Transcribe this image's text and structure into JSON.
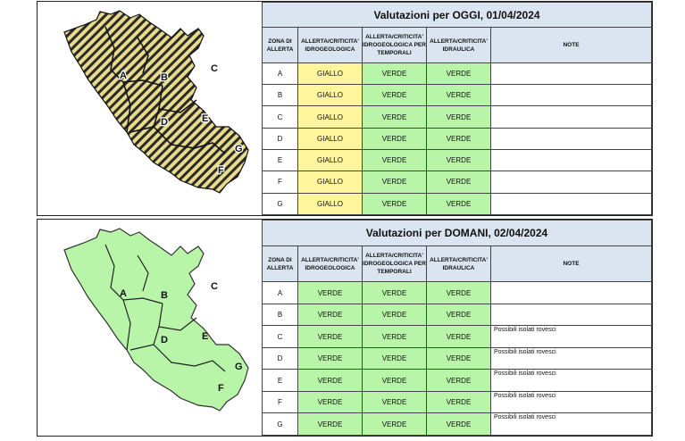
{
  "headers": [
    "ZONA DI ALLERTA",
    "ALLERTA/CRITICITA' IDROGEOLOGICA",
    "ALLERTA/CRITICITA' IDROGEOLOGICA PER TEMPORALI",
    "ALLERTA/CRITICITA' IDRAULICA",
    "NOTE"
  ],
  "today": {
    "title": "Valutazioni per OGGI, 01/04/2024",
    "map_zone_labels": [
      "A",
      "B",
      "C",
      "D",
      "E",
      "F",
      "G"
    ],
    "map_color": "#e8dc8c",
    "rows": [
      {
        "zone": "A",
        "idro": "GIALLO",
        "temporali": "VERDE",
        "idraulica": "VERDE",
        "note": ""
      },
      {
        "zone": "B",
        "idro": "GIALLO",
        "temporali": "VERDE",
        "idraulica": "VERDE",
        "note": ""
      },
      {
        "zone": "C",
        "idro": "GIALLO",
        "temporali": "VERDE",
        "idraulica": "VERDE",
        "note": ""
      },
      {
        "zone": "D",
        "idro": "GIALLO",
        "temporali": "VERDE",
        "idraulica": "VERDE",
        "note": ""
      },
      {
        "zone": "E",
        "idro": "GIALLO",
        "temporali": "VERDE",
        "idraulica": "VERDE",
        "note": ""
      },
      {
        "zone": "F",
        "idro": "GIALLO",
        "temporali": "VERDE",
        "idraulica": "VERDE",
        "note": ""
      },
      {
        "zone": "G",
        "idro": "GIALLO",
        "temporali": "VERDE",
        "idraulica": "VERDE",
        "note": ""
      }
    ]
  },
  "tomorrow": {
    "title": "Valutazioni per DOMANI, 02/04/2024",
    "map_zone_labels": [
      "A",
      "B",
      "C",
      "D",
      "E",
      "F",
      "G"
    ],
    "map_color": "#b9f5a8",
    "rows": [
      {
        "zone": "A",
        "idro": "VERDE",
        "temporali": "VERDE",
        "idraulica": "VERDE",
        "note": ""
      },
      {
        "zone": "B",
        "idro": "VERDE",
        "temporali": "VERDE",
        "idraulica": "VERDE",
        "note": ""
      },
      {
        "zone": "C",
        "idro": "VERDE",
        "temporali": "VERDE",
        "idraulica": "VERDE",
        "note": "Possibili isolati rovesci"
      },
      {
        "zone": "D",
        "idro": "VERDE",
        "temporali": "VERDE",
        "idraulica": "VERDE",
        "note": "Possibili isolati rovesci"
      },
      {
        "zone": "E",
        "idro": "VERDE",
        "temporali": "VERDE",
        "idraulica": "VERDE",
        "note": "Possibili isolati rovesci"
      },
      {
        "zone": "F",
        "idro": "VERDE",
        "temporali": "VERDE",
        "idraulica": "VERDE",
        "note": "Possibili isolati rovesci"
      },
      {
        "zone": "G",
        "idro": "VERDE",
        "temporali": "VERDE",
        "idraulica": "VERDE",
        "note": "Possibili isolati rovesci"
      }
    ]
  },
  "colors": {
    "giallo": "#fff59d",
    "verde": "#b9f5a8",
    "header": "#dbe5f1"
  }
}
